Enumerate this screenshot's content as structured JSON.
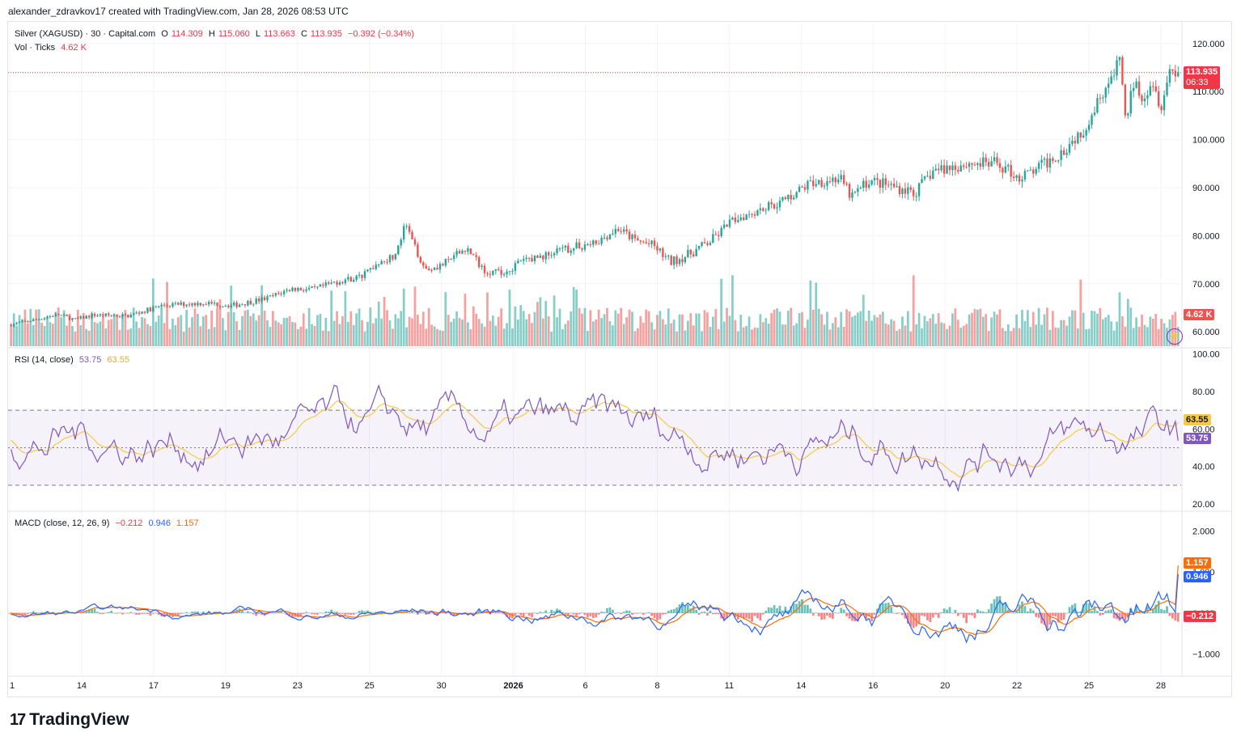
{
  "header": {
    "created_by": "alexander_zdravkov17 created with TradingView.com, Jan 28, 2026 08:53 UTC"
  },
  "price_legend": {
    "symbol": "Silver (XAGUSD) · 30 · Capital.com",
    "open_label": "O",
    "open": "114.309",
    "high_label": "H",
    "high": "115.060",
    "low_label": "L",
    "low": "113.663",
    "close_label": "C",
    "close": "113.935",
    "change": "−0.392 (−0.34%)"
  },
  "vol_legend": {
    "label": "Vol · Ticks",
    "value": "4.62 K"
  },
  "rsi_legend": {
    "label": "RSI (14, close)",
    "rsi": "53.75",
    "ma": "63.55"
  },
  "macd_legend": {
    "label": "MACD (close, 12, 26, 9)",
    "hist": "−0.212",
    "macd": "0.946",
    "signal": "1.157"
  },
  "tags": {
    "price": "113.935",
    "countdown": "06:33",
    "volume": "4.62 K",
    "rsi_ma": "63.55",
    "rsi": "53.75",
    "signal": "1.157",
    "macd": "0.946",
    "hist": "−0.212"
  },
  "brand": {
    "name": "TradingView",
    "mark": "17"
  },
  "colors": {
    "up": "#26a69a",
    "down": "#ef5350",
    "rsi": "#7e57c2",
    "rsi_ma": "#f7c948",
    "macd": "#2962ff",
    "signal": "#ff6d00",
    "last_price": "#f23645"
  },
  "chart_data": [
    {
      "type": "candlestick",
      "title": "Silver (XAGUSD) · 30 · Capital.com",
      "x_ticks": [
        "1",
        "14",
        "17",
        "19",
        "23",
        "25",
        "30",
        "2026",
        "6",
        "8",
        "11",
        "14",
        "16",
        "20",
        "22",
        "25",
        "28"
      ],
      "y_ticks": [
        "120.000",
        "110.000",
        "100.000",
        "90.000",
        "80.000",
        "70.000",
        "60.000"
      ],
      "ylim": [
        57,
        124
      ],
      "last_price": 113.935,
      "close_path": [
        {
          "x": 0,
          "y": 61.5
        },
        {
          "x": 0.02,
          "y": 62.5
        },
        {
          "x": 0.04,
          "y": 63.6
        },
        {
          "x": 0.055,
          "y": 62.5
        },
        {
          "x": 0.07,
          "y": 63.5
        },
        {
          "x": 0.1,
          "y": 63.3
        },
        {
          "x": 0.13,
          "y": 65.5
        },
        {
          "x": 0.165,
          "y": 66
        },
        {
          "x": 0.19,
          "y": 65.5
        },
        {
          "x": 0.22,
          "y": 67
        },
        {
          "x": 0.24,
          "y": 69
        },
        {
          "x": 0.26,
          "y": 68.8
        },
        {
          "x": 0.28,
          "y": 70.5
        },
        {
          "x": 0.3,
          "y": 71.5
        },
        {
          "x": 0.315,
          "y": 74.5
        },
        {
          "x": 0.33,
          "y": 76
        },
        {
          "x": 0.338,
          "y": 82.5
        },
        {
          "x": 0.345,
          "y": 78
        },
        {
          "x": 0.355,
          "y": 73
        },
        {
          "x": 0.37,
          "y": 74
        },
        {
          "x": 0.39,
          "y": 77.5
        },
        {
          "x": 0.405,
          "y": 73
        },
        {
          "x": 0.42,
          "y": 72
        },
        {
          "x": 0.44,
          "y": 75
        },
        {
          "x": 0.46,
          "y": 76
        },
        {
          "x": 0.48,
          "y": 77.5
        },
        {
          "x": 0.5,
          "y": 78.5
        },
        {
          "x": 0.52,
          "y": 81.5
        },
        {
          "x": 0.535,
          "y": 79
        },
        {
          "x": 0.55,
          "y": 78
        },
        {
          "x": 0.565,
          "y": 74.5
        },
        {
          "x": 0.58,
          "y": 76
        },
        {
          "x": 0.6,
          "y": 79
        },
        {
          "x": 0.62,
          "y": 83.5
        },
        {
          "x": 0.64,
          "y": 85.5
        },
        {
          "x": 0.66,
          "y": 87
        },
        {
          "x": 0.685,
          "y": 91
        },
        {
          "x": 0.71,
          "y": 92
        },
        {
          "x": 0.72,
          "y": 88
        },
        {
          "x": 0.735,
          "y": 91.5
        },
        {
          "x": 0.76,
          "y": 90
        },
        {
          "x": 0.775,
          "y": 89
        },
        {
          "x": 0.79,
          "y": 93.5
        },
        {
          "x": 0.82,
          "y": 95
        },
        {
          "x": 0.845,
          "y": 95
        },
        {
          "x": 0.865,
          "y": 92
        },
        {
          "x": 0.88,
          "y": 94
        },
        {
          "x": 0.9,
          "y": 97.5
        },
        {
          "x": 0.92,
          "y": 102.5
        },
        {
          "x": 0.935,
          "y": 110
        },
        {
          "x": 0.945,
          "y": 113
        },
        {
          "x": 0.95,
          "y": 117.5
        },
        {
          "x": 0.955,
          "y": 103.5
        },
        {
          "x": 0.962,
          "y": 112
        },
        {
          "x": 0.97,
          "y": 109
        },
        {
          "x": 0.978,
          "y": 112.5
        },
        {
          "x": 0.985,
          "y": 107
        },
        {
          "x": 0.993,
          "y": 114.5
        },
        {
          "x": 1,
          "y": 113.935
        }
      ]
    },
    {
      "type": "bar",
      "title": "Vol · Ticks",
      "last_value": "4.62 K",
      "note": "Volume histogram, colored by candle direction"
    },
    {
      "type": "line",
      "title": "RSI (14, close)",
      "y_ticks": [
        "100.00",
        "80.00",
        "60.00",
        "40.00",
        "20.00"
      ],
      "ylim": [
        17,
        102
      ],
      "bands": [
        30,
        50,
        70
      ],
      "series": [
        {
          "name": "RSI",
          "last": 53.75
        },
        {
          "name": "RSI-based MA",
          "last": 63.55
        }
      ]
    },
    {
      "type": "line",
      "title": "MACD (close, 12, 26, 9)",
      "y_ticks": [
        "2.000",
        "1.000",
        "0.000",
        "−1.000"
      ],
      "ylim": [
        -1.5,
        2.4
      ],
      "series": [
        {
          "name": "Histogram",
          "last": -0.212
        },
        {
          "name": "MACD",
          "last": 0.946
        },
        {
          "name": "Signal",
          "last": 1.157
        }
      ]
    }
  ]
}
